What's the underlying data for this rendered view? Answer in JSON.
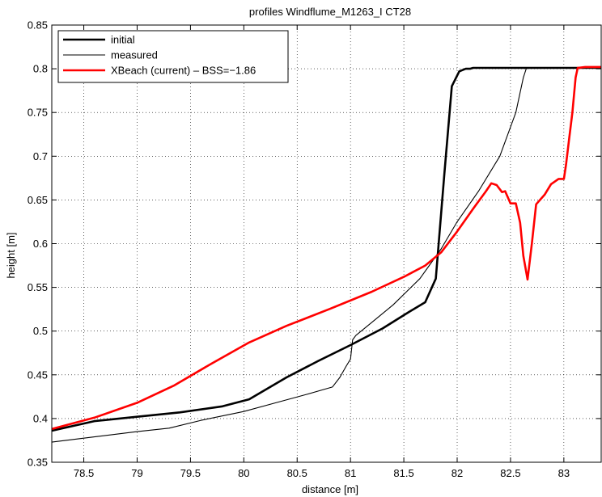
{
  "chart_data": {
    "type": "line",
    "title": "profiles Windflume_M1263_I CT28",
    "xlabel": "distance [m]",
    "ylabel": "height [m]",
    "xlim": [
      78.2,
      83.35
    ],
    "ylim": [
      0.35,
      0.85
    ],
    "grid": true,
    "legend_position": "top-left",
    "x_ticks": [
      78.5,
      79,
      79.5,
      80,
      80.5,
      81,
      81.5,
      82,
      82.5,
      83
    ],
    "x_tick_labels": [
      "78.5",
      "79",
      "79.5",
      "80",
      "80.5",
      "81",
      "81.5",
      "82",
      "82.5",
      "83"
    ],
    "y_ticks": [
      0.35,
      0.4,
      0.45,
      0.5,
      0.55,
      0.6,
      0.65,
      0.7,
      0.75,
      0.8,
      0.85
    ],
    "y_tick_labels": [
      "0.35",
      "0.4",
      "0.45",
      "0.5",
      "0.55",
      "0.6",
      "0.65",
      "0.7",
      "0.75",
      "0.8",
      "0.85"
    ],
    "series": [
      {
        "name": "initial",
        "color": "#000000",
        "style": "thick",
        "x": [
          78.2,
          78.6,
          79.0,
          79.4,
          79.8,
          80.05,
          80.4,
          80.7,
          81.0,
          81.3,
          81.55,
          81.7,
          81.8,
          81.88,
          81.95,
          82.02,
          82.08,
          82.12,
          82.15,
          82.18,
          82.5,
          83.0,
          83.35
        ],
        "y": [
          0.386,
          0.397,
          0.402,
          0.407,
          0.414,
          0.422,
          0.447,
          0.466,
          0.484,
          0.503,
          0.522,
          0.533,
          0.56,
          0.68,
          0.78,
          0.797,
          0.8,
          0.8,
          0.801,
          0.801,
          0.801,
          0.801,
          0.801
        ]
      },
      {
        "name": "measured",
        "color": "#000000",
        "style": "thin",
        "x": [
          78.2,
          78.6,
          79.0,
          79.3,
          79.6,
          80.0,
          80.3,
          80.6,
          80.83,
          80.9,
          80.96,
          81.0,
          81.02,
          81.05,
          81.2,
          81.4,
          81.65,
          81.85,
          82.0,
          82.2,
          82.4,
          82.55,
          82.62,
          82.65,
          83.0,
          83.35
        ],
        "y": [
          0.373,
          0.379,
          0.385,
          0.389,
          0.398,
          0.408,
          0.418,
          0.428,
          0.436,
          0.447,
          0.46,
          0.468,
          0.49,
          0.495,
          0.51,
          0.53,
          0.56,
          0.594,
          0.625,
          0.66,
          0.7,
          0.75,
          0.79,
          0.801,
          0.801,
          0.801
        ]
      },
      {
        "name": "XBeach (current) – BSS=−1.86",
        "color": "#ff0000",
        "style": "thick",
        "x": [
          78.2,
          78.6,
          79.0,
          79.35,
          79.7,
          80.05,
          80.4,
          80.8,
          81.2,
          81.5,
          81.7,
          81.85,
          82.0,
          82.15,
          82.27,
          82.32,
          82.37,
          82.42,
          82.45,
          82.5,
          82.55,
          82.59,
          82.62,
          82.66,
          82.7,
          82.74,
          82.82,
          82.88,
          82.95,
          83.0,
          83.02,
          83.05,
          83.08,
          83.11,
          83.13,
          83.2,
          83.35
        ],
        "y": [
          0.388,
          0.401,
          0.418,
          0.438,
          0.463,
          0.487,
          0.506,
          0.525,
          0.545,
          0.562,
          0.575,
          0.59,
          0.614,
          0.64,
          0.66,
          0.669,
          0.667,
          0.659,
          0.66,
          0.646,
          0.646,
          0.624,
          0.586,
          0.559,
          0.6,
          0.645,
          0.656,
          0.668,
          0.674,
          0.674,
          0.69,
          0.72,
          0.75,
          0.79,
          0.801,
          0.802,
          0.802
        ]
      }
    ]
  }
}
